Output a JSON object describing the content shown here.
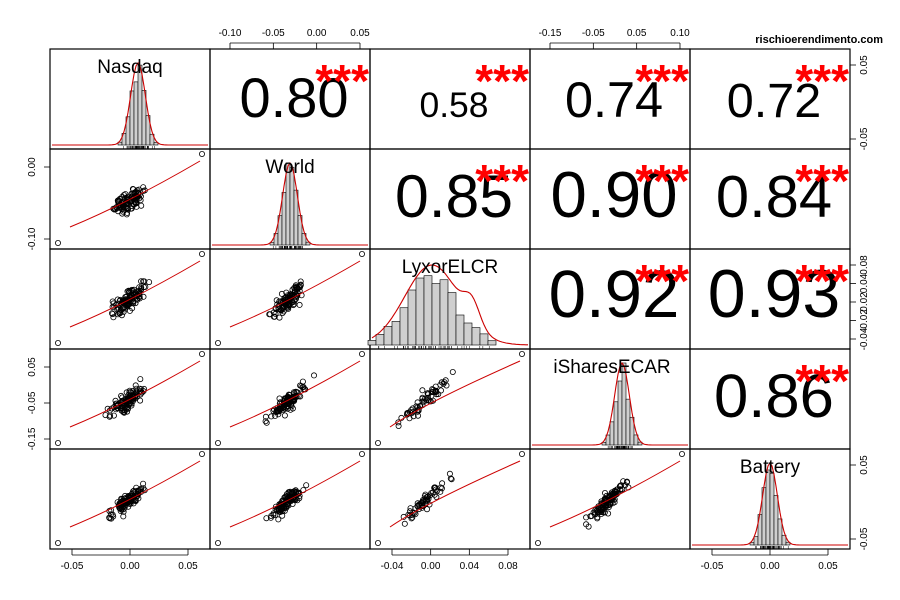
{
  "watermark": "rischioerendimento.com",
  "chart_data": {
    "type": "scatter-matrix",
    "title": "",
    "variables": [
      "Nasdaq",
      "World",
      "LyxorELCR",
      "iSharesECAR",
      "Battery"
    ],
    "correlations": [
      {
        "row": 0,
        "col": 1,
        "value": "0.80",
        "stars": "***"
      },
      {
        "row": 0,
        "col": 2,
        "value": "0.58",
        "stars": "***"
      },
      {
        "row": 0,
        "col": 3,
        "value": "0.74",
        "stars": "***"
      },
      {
        "row": 0,
        "col": 4,
        "value": "0.72",
        "stars": "***"
      },
      {
        "row": 1,
        "col": 2,
        "value": "0.85",
        "stars": "***"
      },
      {
        "row": 1,
        "col": 3,
        "value": "0.90",
        "stars": "***"
      },
      {
        "row": 1,
        "col": 4,
        "value": "0.84",
        "stars": "***"
      },
      {
        "row": 2,
        "col": 3,
        "value": "0.92",
        "stars": "***"
      },
      {
        "row": 2,
        "col": 4,
        "value": "0.93",
        "stars": "***"
      },
      {
        "row": 3,
        "col": 4,
        "value": "0.86",
        "stars": "***"
      }
    ],
    "axes": {
      "bottom": [
        {
          "col": 0,
          "ticks": [
            "-0.05",
            "0.00",
            "0.05"
          ]
        },
        {
          "col": 2,
          "ticks": [
            "-0.04",
            "0.00",
            "0.04",
            "0.08"
          ]
        },
        {
          "col": 4,
          "ticks": [
            "-0.05",
            "0.00",
            "0.05"
          ]
        }
      ],
      "top": [
        {
          "col": 1,
          "ticks": [
            "-0.10",
            "-0.05",
            "0.00",
            "0.05"
          ]
        },
        {
          "col": 3,
          "ticks": [
            "-0.15",
            "-0.05",
            "0.05",
            "0.10"
          ]
        }
      ],
      "left": [
        {
          "row": 1,
          "ticks": [
            "0.00",
            "-0.10"
          ]
        },
        {
          "row": 3,
          "ticks": [
            "0.05",
            "-0.05",
            "-0.15"
          ]
        }
      ],
      "right": [
        {
          "row": 0,
          "ticks": [
            "0.05",
            "-0.05"
          ]
        },
        {
          "row": 2,
          "ticks": [
            "0.08",
            "0.04",
            "0.02",
            "-0.02",
            "-0.04"
          ]
        },
        {
          "row": 4,
          "ticks": [
            "0.05",
            "-0.05"
          ]
        }
      ]
    },
    "colors": {
      "stars": "#ff0000",
      "fit_line": "#cc0000",
      "bars": "#cfcfcf",
      "frame": "#000000"
    }
  }
}
